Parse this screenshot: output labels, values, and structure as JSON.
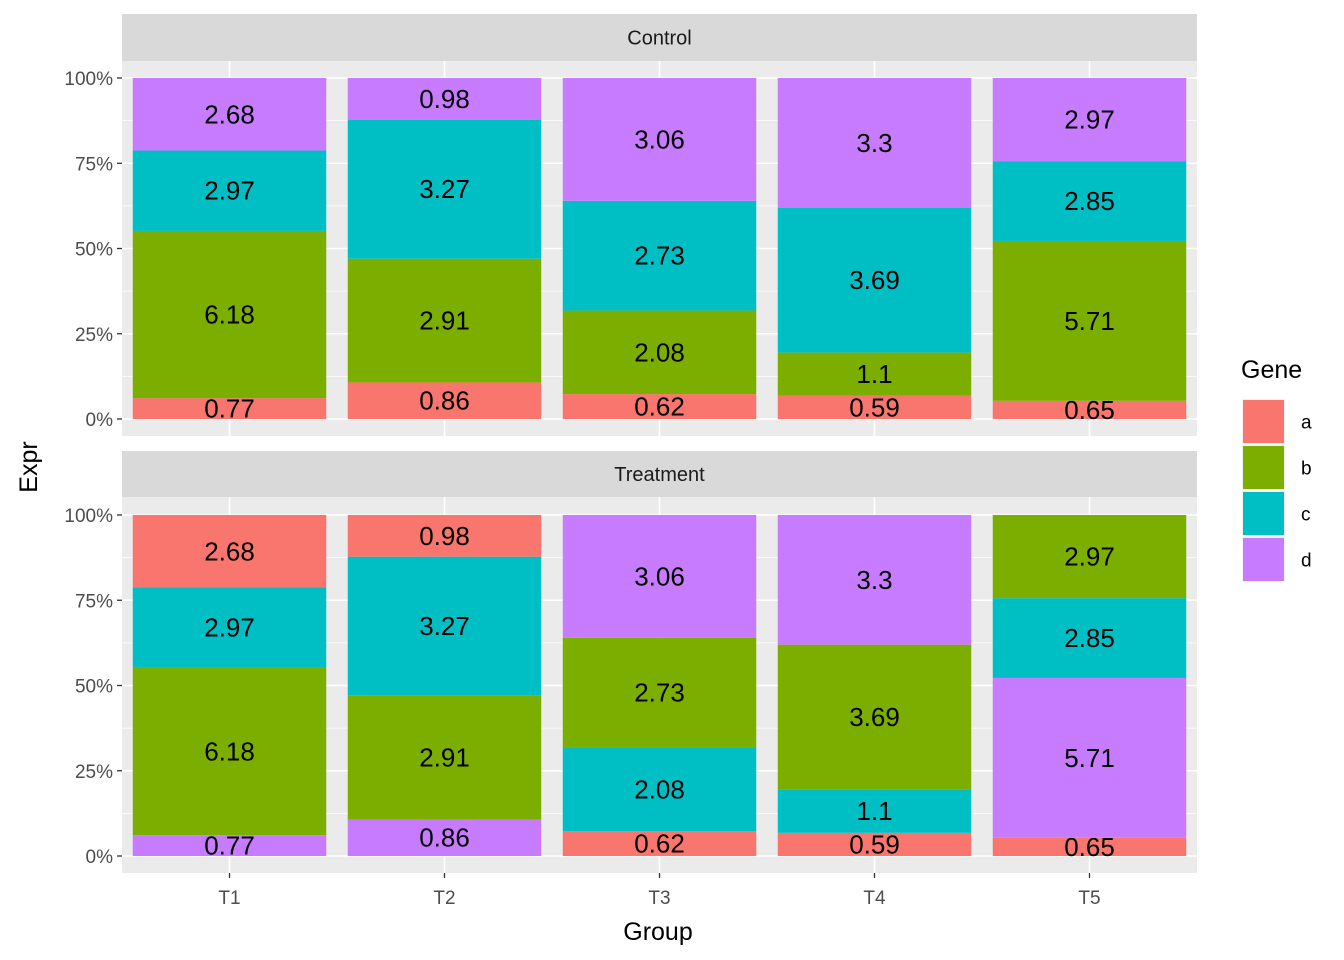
{
  "chart_data": {
    "type": "bar",
    "stacked": "fill",
    "xlabel": "Group",
    "ylabel": "Expr",
    "categories": [
      "T1",
      "T2",
      "T3",
      "T4",
      "T5"
    ],
    "y_ticks": [
      "0%",
      "25%",
      "50%",
      "75%",
      "100%"
    ],
    "ylim": [
      0,
      1
    ],
    "grid": true,
    "legend": {
      "title": "Gene",
      "position": "right",
      "items": [
        {
          "key": "a",
          "color": "#F8766D"
        },
        {
          "key": "b",
          "color": "#7CAE00"
        },
        {
          "key": "c",
          "color": "#00BFC4"
        },
        {
          "key": "d",
          "color": "#C77CFF"
        }
      ]
    },
    "panels": [
      {
        "title": "Control",
        "bars": [
          {
            "category": "T1",
            "segments": [
              {
                "gene": "a",
                "value": 0.77
              },
              {
                "gene": "b",
                "value": 6.18
              },
              {
                "gene": "c",
                "value": 2.97
              },
              {
                "gene": "d",
                "value": 2.68
              }
            ]
          },
          {
            "category": "T2",
            "segments": [
              {
                "gene": "a",
                "value": 0.86
              },
              {
                "gene": "b",
                "value": 2.91
              },
              {
                "gene": "c",
                "value": 3.27
              },
              {
                "gene": "d",
                "value": 0.98
              }
            ]
          },
          {
            "category": "T3",
            "segments": [
              {
                "gene": "a",
                "value": 0.62
              },
              {
                "gene": "b",
                "value": 2.08
              },
              {
                "gene": "c",
                "value": 2.73
              },
              {
                "gene": "d",
                "value": 3.06
              }
            ]
          },
          {
            "category": "T4",
            "segments": [
              {
                "gene": "a",
                "value": 0.59
              },
              {
                "gene": "b",
                "value": 1.1
              },
              {
                "gene": "c",
                "value": 3.69
              },
              {
                "gene": "d",
                "value": 3.3
              }
            ]
          },
          {
            "category": "T5",
            "segments": [
              {
                "gene": "a",
                "value": 0.65
              },
              {
                "gene": "b",
                "value": 5.71
              },
              {
                "gene": "c",
                "value": 2.85
              },
              {
                "gene": "d",
                "value": 2.97
              }
            ]
          }
        ]
      },
      {
        "title": "Treatment",
        "bars": [
          {
            "category": "T1",
            "segments": [
              {
                "gene": "d",
                "value": 0.77
              },
              {
                "gene": "b",
                "value": 6.18
              },
              {
                "gene": "c",
                "value": 2.97
              },
              {
                "gene": "a",
                "value": 2.68
              }
            ]
          },
          {
            "category": "T2",
            "segments": [
              {
                "gene": "d",
                "value": 0.86
              },
              {
                "gene": "b",
                "value": 2.91
              },
              {
                "gene": "c",
                "value": 3.27
              },
              {
                "gene": "a",
                "value": 0.98
              }
            ]
          },
          {
            "category": "T3",
            "segments": [
              {
                "gene": "a",
                "value": 0.62
              },
              {
                "gene": "c",
                "value": 2.08
              },
              {
                "gene": "b",
                "value": 2.73
              },
              {
                "gene": "d",
                "value": 3.06
              }
            ]
          },
          {
            "category": "T4",
            "segments": [
              {
                "gene": "a",
                "value": 0.59
              },
              {
                "gene": "c",
                "value": 1.1
              },
              {
                "gene": "b",
                "value": 3.69
              },
              {
                "gene": "d",
                "value": 3.3
              }
            ]
          },
          {
            "category": "T5",
            "segments": [
              {
                "gene": "a",
                "value": 0.65
              },
              {
                "gene": "d",
                "value": 5.71
              },
              {
                "gene": "c",
                "value": 2.85
              },
              {
                "gene": "b",
                "value": 2.97
              }
            ]
          }
        ]
      }
    ]
  }
}
